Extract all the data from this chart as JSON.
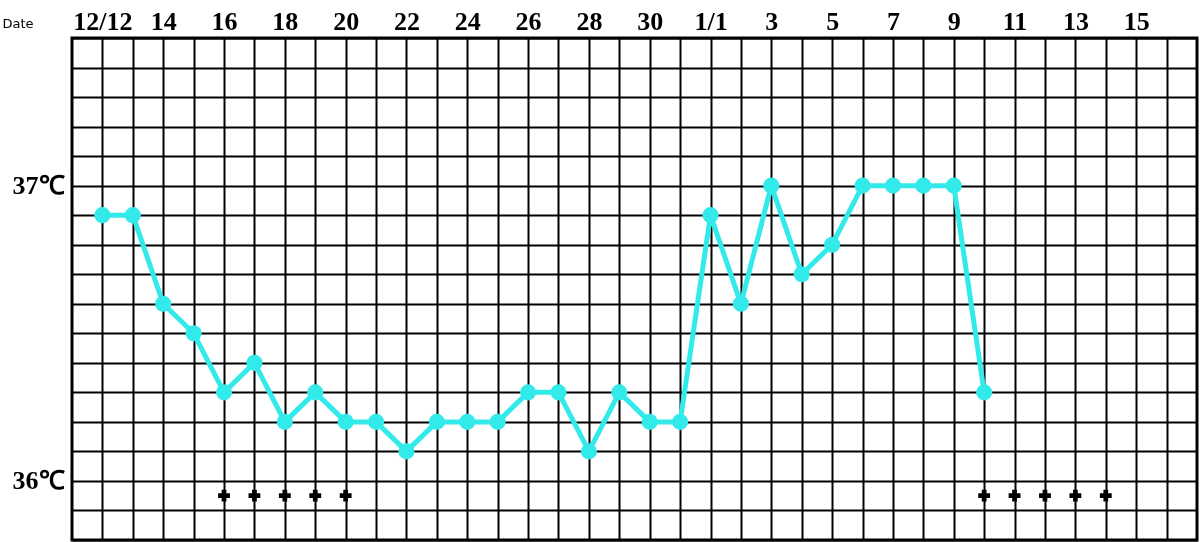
{
  "chart_data": {
    "type": "line",
    "xlabel": "Date",
    "categories": [
      "12/12",
      null,
      "14",
      null,
      "16",
      null,
      "18",
      null,
      "20",
      null,
      "22",
      null,
      "24",
      null,
      "26",
      null,
      "28",
      null,
      "30",
      null,
      "1/1",
      null,
      "3",
      null,
      "5",
      null,
      "7",
      null,
      "9",
      null,
      "11",
      null,
      "13",
      null,
      "15",
      null
    ],
    "series": [
      {
        "marker": "circle",
        "color": "#33eaea",
        "values": [
          36.9,
          36.9,
          36.6,
          36.5,
          36.3,
          36.4,
          36.2,
          36.3,
          36.2,
          36.2,
          36.1,
          36.2,
          36.2,
          36.2,
          36.3,
          36.3,
          36.1,
          36.3,
          36.2,
          36.2,
          36.9,
          36.6,
          37.0,
          36.7,
          36.8,
          37.0,
          37.0,
          37.0,
          37.0,
          36.3,
          null,
          null,
          null,
          null,
          null,
          null
        ]
      },
      {
        "type": "scatter",
        "marker": "cross",
        "color": "#000000",
        "values": [
          null,
          null,
          null,
          null,
          35.95,
          35.95,
          35.95,
          35.95,
          35.95,
          null,
          null,
          null,
          null,
          null,
          null,
          null,
          null,
          null,
          null,
          null,
          null,
          null,
          null,
          null,
          null,
          null,
          null,
          null,
          null,
          35.95,
          35.95,
          35.95,
          35.95,
          35.95,
          null,
          null
        ]
      }
    ],
    "ylim": [
      35.8,
      37.5
    ],
    "yticks": [
      {
        "value": 35.8,
        "label": null
      },
      {
        "value": 35.9,
        "label": null
      },
      {
        "value": 36.0,
        "label": "36℃"
      },
      {
        "value": 36.1,
        "label": null
      },
      {
        "value": 36.2,
        "label": null
      },
      {
        "value": 36.3,
        "label": null
      },
      {
        "value": 36.4,
        "label": null
      },
      {
        "value": 36.5,
        "label": null
      },
      {
        "value": 36.6,
        "label": null
      },
      {
        "value": 36.7,
        "label": null
      },
      {
        "value": 36.8,
        "label": null
      },
      {
        "value": 36.9,
        "label": null
      },
      {
        "value": 37.0,
        "label": "37℃"
      },
      {
        "value": 37.1,
        "label": null
      },
      {
        "value": 37.2,
        "label": null
      },
      {
        "value": 37.3,
        "label": null
      },
      {
        "value": 37.4,
        "label": null
      },
      {
        "value": 37.5,
        "label": null
      }
    ],
    "grid": true
  }
}
